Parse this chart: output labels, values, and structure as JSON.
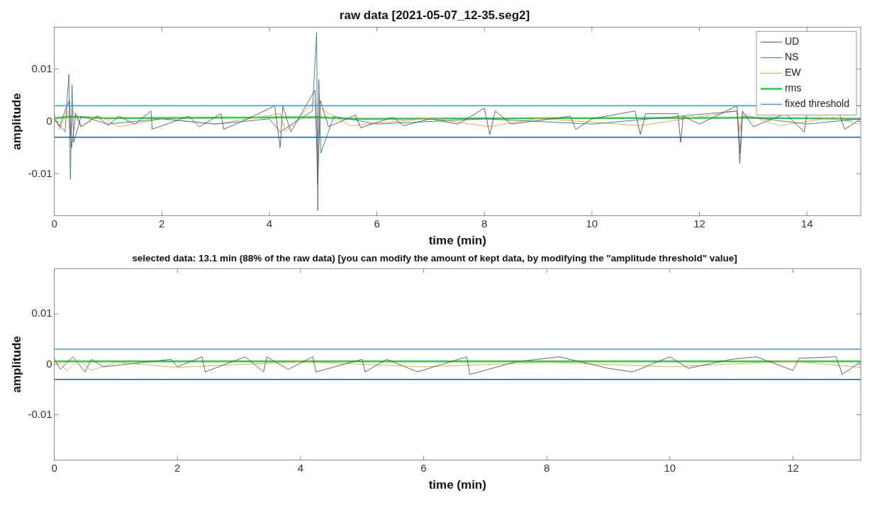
{
  "chart_data": [
    {
      "type": "line",
      "title": "raw data [2021-05-07_12-35.seg2]",
      "xlabel": "time (min)",
      "ylabel": "amplitude",
      "xlim": [
        0,
        15
      ],
      "xticks": [
        0,
        2,
        4,
        6,
        8,
        10,
        12,
        14
      ],
      "ylim": [
        -0.018,
        0.018
      ],
      "yticks": [
        -0.01,
        0,
        0.01
      ],
      "grid": false,
      "legend": "top right",
      "marker": "none",
      "series": [
        {
          "name": "UD",
          "color": "#555555",
          "x": [
            0,
            0.1,
            0.2,
            0.28,
            0.32,
            0.4,
            0.5,
            0.8,
            1.0,
            1.2,
            1.5,
            1.8,
            1.82,
            2.5,
            2.7,
            3.1,
            3.15,
            3.6,
            4.1,
            4.2,
            4.25,
            4.4,
            4.85,
            4.9,
            4.95,
            5.1,
            5.6,
            5.7,
            6.3,
            6.5,
            7.0,
            7.5,
            8.0,
            8.1,
            8.2,
            8.5,
            9.6,
            9.7,
            10.0,
            10.8,
            10.9,
            11.0,
            11.6,
            11.65,
            11.7,
            12.0,
            12.7,
            12.75,
            12.8,
            13.0,
            13.6,
            13.95,
            14.0,
            14.6,
            14.7,
            15
          ],
          "values": [
            0.0005,
            -0.001,
            0.002,
            0.004,
            -0.005,
            0.0015,
            -0.001,
            0.001,
            -0.0008,
            0.001,
            -0.0005,
            0.002,
            -0.0015,
            0.001,
            -0.001,
            0.0015,
            -0.0015,
            0.0005,
            0.003,
            -0.005,
            0.003,
            -0.002,
            0.006,
            -0.012,
            0.004,
            -0.001,
            0.0012,
            -0.0012,
            0.0008,
            -0.0008,
            0.0005,
            -0.0005,
            0.0025,
            -0.0025,
            0.002,
            -0.0005,
            0.001,
            -0.0015,
            0.0005,
            0.002,
            -0.0025,
            0.0015,
            0.0015,
            -0.004,
            0.001,
            -0.0005,
            0.003,
            -0.008,
            0.002,
            -0.001,
            0.0015,
            -0.002,
            0.0015,
            0.0015,
            -0.0015,
            0.0005
          ]
        },
        {
          "name": "NS",
          "color": "#3d6f96",
          "x": [
            0,
            0.2,
            0.27,
            0.3,
            0.33,
            0.36,
            0.5,
            1.0,
            2.0,
            3.0,
            4.0,
            4.2,
            4.8,
            4.88,
            4.9,
            4.92,
            4.96,
            5.2,
            6.0,
            8.0,
            10.0,
            12.7,
            12.76,
            12.8,
            14,
            15
          ],
          "values": [
            0.0005,
            -0.002,
            0.009,
            -0.011,
            0.007,
            -0.004,
            0.001,
            -0.0005,
            0.0005,
            -0.0005,
            0.0005,
            -0.002,
            0.002,
            0.017,
            -0.017,
            0.008,
            -0.006,
            0.001,
            -0.0005,
            0.0005,
            -0.0005,
            0.002,
            -0.006,
            0.001,
            -0.0005,
            0.0005
          ]
        },
        {
          "name": "EW",
          "color": "#f0a030",
          "x": [
            0,
            0.1,
            0.25,
            0.3,
            0.35,
            0.5,
            0.8,
            1.2,
            2.0,
            3.0,
            4.2,
            4.3,
            4.85,
            4.9,
            4.95,
            5.5,
            7.0,
            8.1,
            9.0,
            10.9,
            12.7,
            12.75,
            12.8,
            13.5,
            14.5,
            15
          ],
          "values": [
            0.0015,
            -0.0015,
            0.002,
            -0.003,
            0.002,
            -0.001,
            0.0012,
            -0.001,
            0.0005,
            -0.0005,
            0.0015,
            -0.002,
            0.004,
            -0.003,
            0.0025,
            -0.0008,
            0.0006,
            -0.001,
            0.0006,
            -0.0008,
            0.002,
            -0.002,
            0.0015,
            -0.0008,
            0.0008,
            -0.0006
          ]
        },
        {
          "name": "rms",
          "color": "#2ecc40",
          "x": [
            0,
            0.3,
            1.0,
            4.9,
            5.5,
            12.75,
            15
          ],
          "values": [
            0.0006,
            0.0009,
            0.0006,
            0.0008,
            0.0005,
            0.0007,
            0.0005
          ]
        }
      ],
      "ref_lines": [
        {
          "axis": "y",
          "value": 0.003,
          "label": "fixed threshold",
          "color": "#3a9bd8"
        },
        {
          "axis": "y",
          "value": -0.003,
          "color": "#1f5f9f"
        }
      ]
    },
    {
      "type": "line",
      "title": "selected data: 13.1 min (88% of the raw data) [you can modify the amount of kept data, by modifying the \"amplitude threshold\" value]",
      "xlabel": "time (min)",
      "ylabel": "amplitude",
      "xlim": [
        0,
        13.1
      ],
      "xticks": [
        0,
        2,
        4,
        6,
        8,
        10,
        12
      ],
      "ylim": [
        -0.019,
        0.019
      ],
      "yticks": [
        -0.01,
        0,
        0.01
      ],
      "grid": false,
      "legend": false,
      "marker": "none",
      "series": [
        {
          "color": "#555555",
          "x": [
            0,
            0.1,
            0.3,
            0.5,
            0.6,
            0.8,
            1.9,
            2.0,
            2.4,
            2.45,
            3.1,
            3.4,
            3.45,
            3.8,
            4.2,
            4.25,
            5.0,
            5.05,
            5.4,
            5.9,
            6.7,
            6.75,
            7.5,
            8.2,
            9.0,
            9.4,
            10.0,
            10.3,
            11.0,
            11.4,
            12.0,
            12.1,
            12.7,
            12.8,
            13.1
          ],
          "values": [
            0.001,
            -0.001,
            0.0015,
            -0.0015,
            0.001,
            -0.0005,
            0.001,
            -0.0005,
            0.0015,
            -0.0015,
            0.0015,
            -0.0015,
            0.0015,
            -0.001,
            0.0015,
            -0.0015,
            0.001,
            -0.0015,
            0.001,
            -0.0015,
            0.0015,
            -0.002,
            0.0005,
            0.0015,
            -0.0008,
            -0.0015,
            0.0015,
            -0.0008,
            0.001,
            0.0015,
            -0.0012,
            0.0012,
            0.0015,
            -0.002,
            0.0005
          ]
        },
        {
          "color": "#f0a030",
          "x": [
            0,
            0.2,
            0.4,
            0.6,
            1.0,
            2.0,
            4.0,
            6.0,
            8.0,
            10.0,
            12.0,
            13.1
          ],
          "values": [
            0.0012,
            -0.0012,
            0.001,
            -0.0012,
            0.0004,
            -0.0006,
            0.0005,
            -0.0005,
            0.0004,
            -0.0005,
            0.0006,
            -0.0006
          ]
        },
        {
          "color": "#2ecc40",
          "x": [
            0,
            13.1
          ],
          "values": [
            0.0006,
            0.0006
          ]
        }
      ],
      "ref_lines": [
        {
          "axis": "y",
          "value": 0.003,
          "color": "#3a9bd8"
        },
        {
          "axis": "y",
          "value": -0.003,
          "color": "#1f5f9f"
        }
      ]
    }
  ]
}
